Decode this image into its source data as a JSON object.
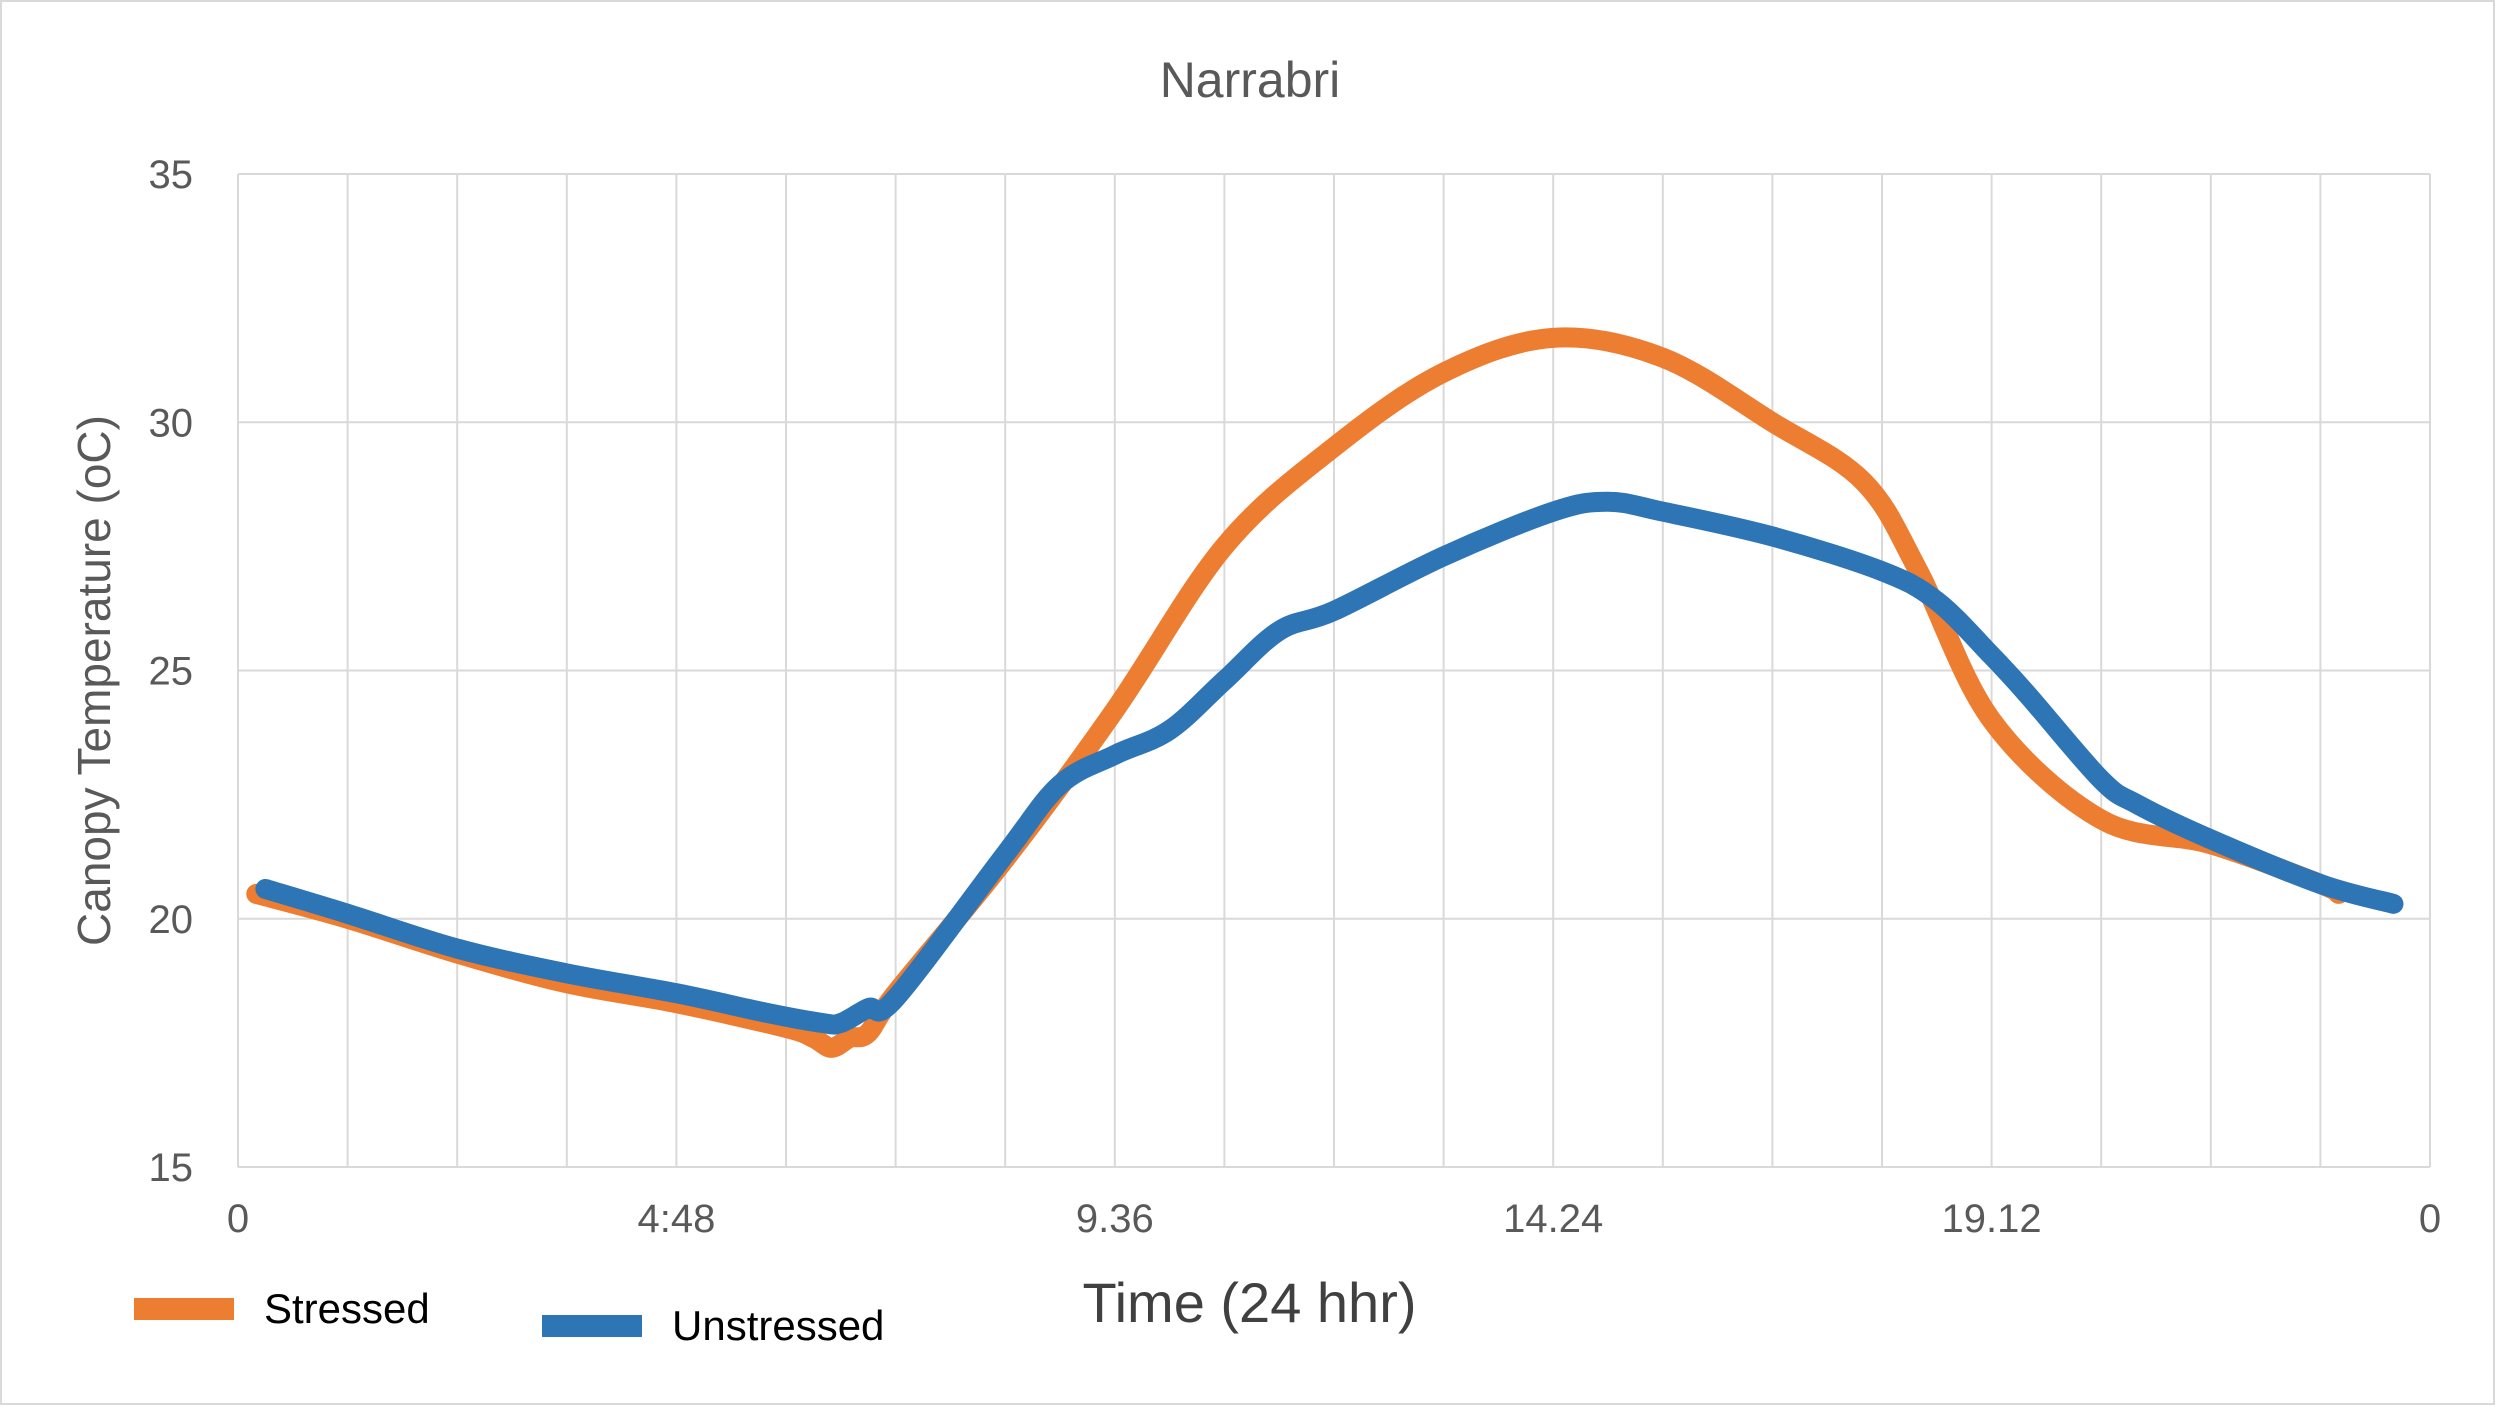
{
  "chart_data": {
    "type": "line",
    "title": "Narrabri",
    "xlabel": "Time (24 hhr)",
    "ylabel": "Canopy Temperature (oC)",
    "xlim": [
      0,
      24
    ],
    "ylim": [
      15,
      35
    ],
    "y_ticks": [
      15,
      20,
      25,
      30,
      35
    ],
    "x_ticks": [
      {
        "value": 0,
        "label": "0"
      },
      {
        "value": 4.8,
        "label": "4:48"
      },
      {
        "value": 9.6,
        "label": "9.36"
      },
      {
        "value": 14.4,
        "label": "14.24"
      },
      {
        "value": 19.2,
        "label": "19.12"
      },
      {
        "value": 24,
        "label": "0"
      }
    ],
    "grid": true,
    "legend": "bottom-left",
    "series": [
      {
        "name": "Stressed",
        "color": "#ED7D31",
        "points": [
          [
            0.2,
            20.5
          ],
          [
            1.2,
            20.0
          ],
          [
            2.4,
            19.3
          ],
          [
            3.6,
            18.7
          ],
          [
            4.8,
            18.3
          ],
          [
            6.0,
            17.8
          ],
          [
            6.3,
            17.6
          ],
          [
            6.5,
            17.4
          ],
          [
            6.7,
            17.6
          ],
          [
            6.9,
            17.7
          ],
          [
            7.2,
            18.5
          ],
          [
            8.4,
            21.2
          ],
          [
            9.6,
            24.2
          ],
          [
            10.8,
            27.5
          ],
          [
            12.0,
            29.5
          ],
          [
            13.2,
            31.0
          ],
          [
            14.4,
            31.7
          ],
          [
            15.6,
            31.3
          ],
          [
            16.8,
            30.0
          ],
          [
            17.8,
            28.8
          ],
          [
            18.4,
            27.0
          ],
          [
            19.2,
            24.0
          ],
          [
            20.4,
            22.0
          ],
          [
            21.6,
            21.5
          ],
          [
            22.8,
            20.7
          ],
          [
            23.0,
            20.5
          ]
        ]
      },
      {
        "name": "Unstressed",
        "color": "#2E75B6",
        "points": [
          [
            0.3,
            20.6
          ],
          [
            1.2,
            20.1
          ],
          [
            2.4,
            19.4
          ],
          [
            3.6,
            18.9
          ],
          [
            4.8,
            18.5
          ],
          [
            5.8,
            18.1
          ],
          [
            6.4,
            17.9
          ],
          [
            6.6,
            17.9
          ],
          [
            6.9,
            18.2
          ],
          [
            7.2,
            18.4
          ],
          [
            8.4,
            21.3
          ],
          [
            9.0,
            22.7
          ],
          [
            9.6,
            23.3
          ],
          [
            10.2,
            23.8
          ],
          [
            10.8,
            24.8
          ],
          [
            11.4,
            25.8
          ],
          [
            12.0,
            26.2
          ],
          [
            13.2,
            27.3
          ],
          [
            14.4,
            28.2
          ],
          [
            15.0,
            28.4
          ],
          [
            15.6,
            28.2
          ],
          [
            16.8,
            27.7
          ],
          [
            18.0,
            27.0
          ],
          [
            18.6,
            26.4
          ],
          [
            19.2,
            25.3
          ],
          [
            19.6,
            24.5
          ],
          [
            20.4,
            22.8
          ],
          [
            20.8,
            22.3
          ],
          [
            21.6,
            21.6
          ],
          [
            22.8,
            20.7
          ],
          [
            23.6,
            20.3
          ]
        ]
      }
    ]
  }
}
